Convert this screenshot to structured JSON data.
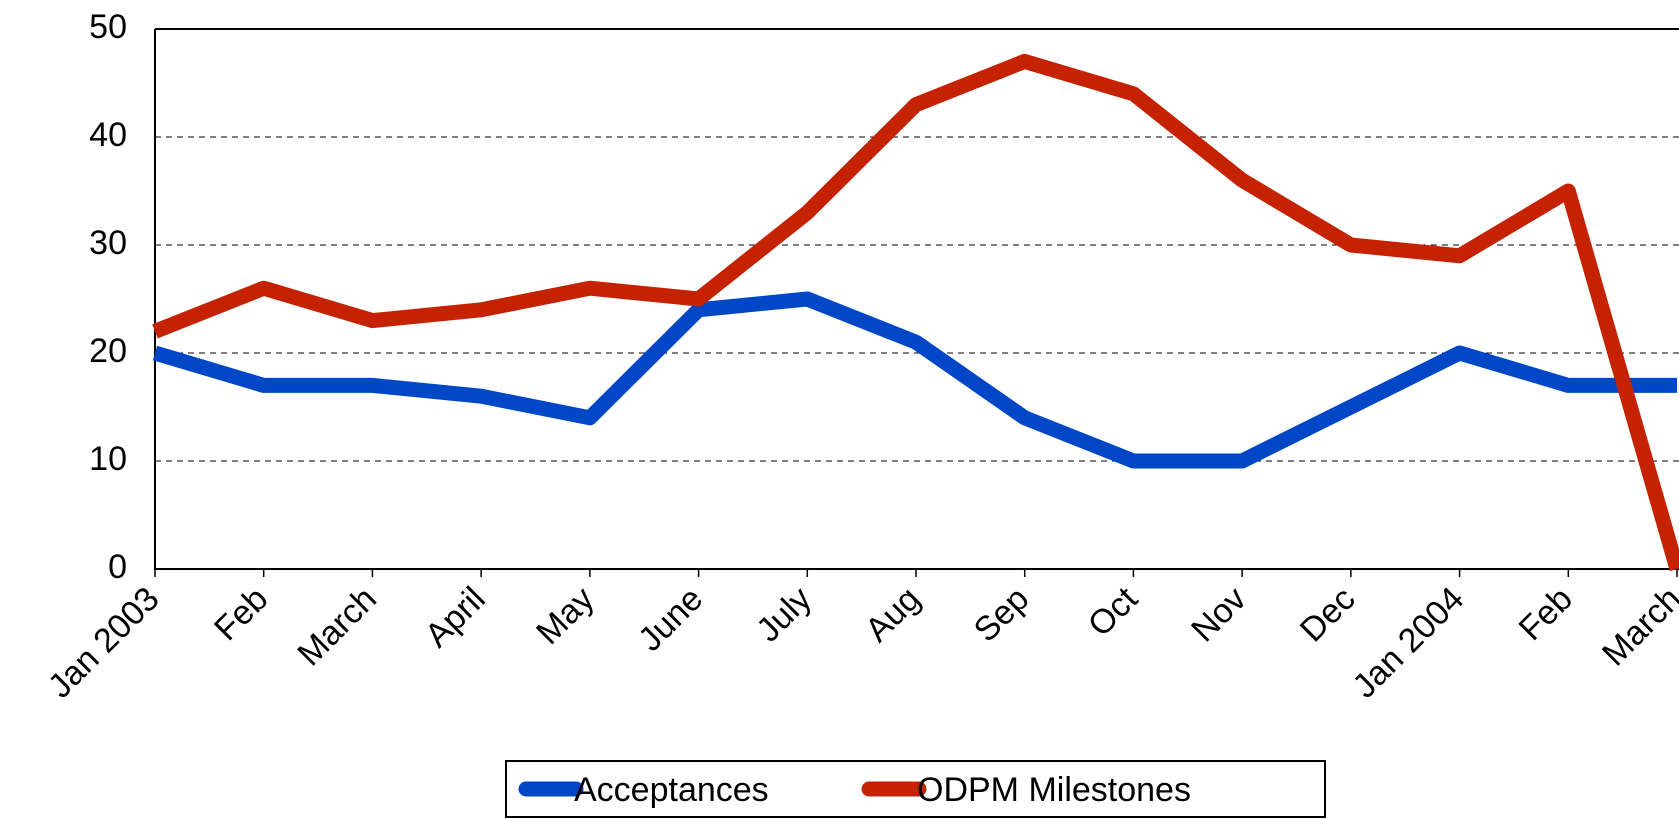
{
  "chart_data": {
    "type": "line",
    "categories": [
      "Jan 2003",
      "Feb",
      "March",
      "April",
      "May",
      "June",
      "July",
      "Aug",
      "Sep",
      "Oct",
      "Nov",
      "Dec",
      "Jan 2004",
      "Feb",
      "March"
    ],
    "series": [
      {
        "name": "Acceptances",
        "color": "#0047c8",
        "values": [
          20,
          17,
          17,
          16,
          14,
          24,
          25,
          21,
          14,
          10,
          10,
          15,
          20,
          17,
          17
        ]
      },
      {
        "name": "ODPM Milestones",
        "color": "#c42200",
        "values": [
          22,
          26,
          23,
          24,
          26,
          25,
          33,
          43,
          47,
          44,
          36,
          30,
          29,
          35,
          0
        ]
      }
    ],
    "ylim": [
      0,
      50
    ],
    "yticks": [
      0,
      10,
      20,
      30,
      40,
      50
    ],
    "grid": true,
    "legend": "bottom"
  }
}
